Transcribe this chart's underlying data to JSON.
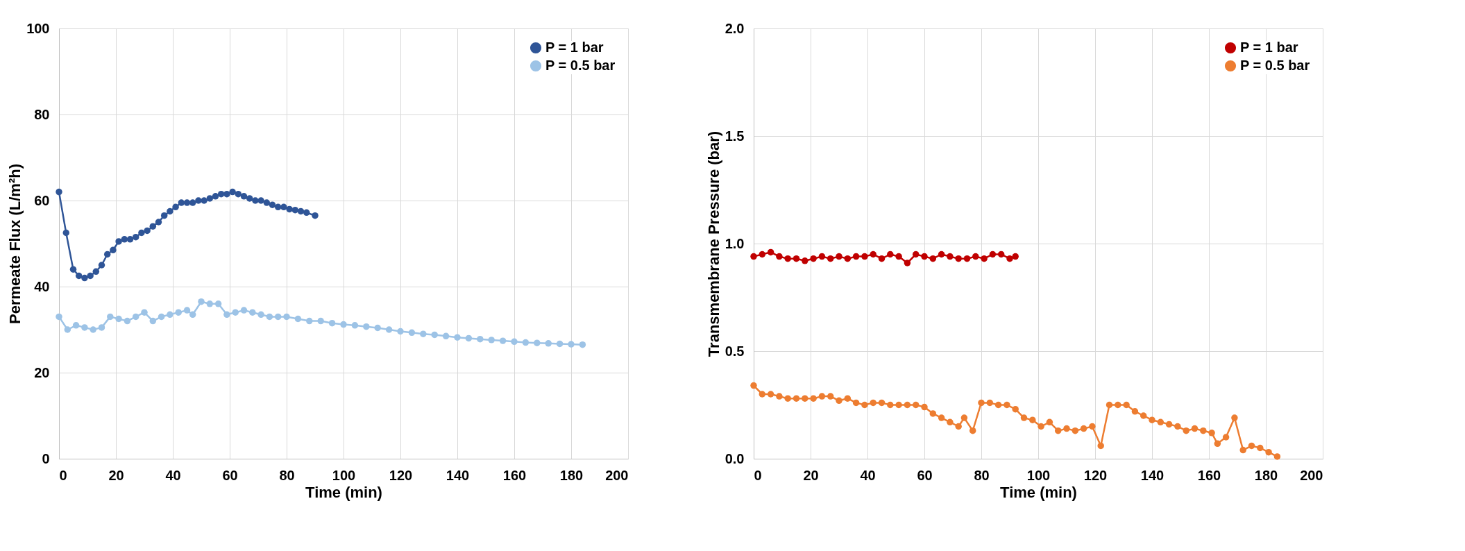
{
  "chart_data": [
    {
      "type": "line",
      "xlabel": "Time (min)",
      "ylabel": "Permeate Flux (L/m²h)",
      "xlim": [
        0,
        200
      ],
      "xticks": [
        0,
        20,
        40,
        60,
        80,
        100,
        120,
        140,
        160,
        180,
        200
      ],
      "ylim": [
        0,
        100
      ],
      "yticks": [
        0,
        20,
        40,
        60,
        80,
        100
      ],
      "grid": true,
      "legend": "top right",
      "marker": "circle",
      "line_style": "solid",
      "series": [
        {
          "name": "P = 1 bar",
          "color": "#2f5597",
          "x": [
            0,
            2.5,
            5,
            7,
            9,
            11,
            13,
            15,
            17,
            19,
            21,
            23,
            25,
            27,
            29,
            31,
            33,
            35,
            37,
            39,
            41,
            43,
            45,
            47,
            49,
            51,
            53,
            55,
            57,
            59,
            61,
            63,
            65,
            67,
            69,
            71,
            73,
            75,
            77,
            79,
            81,
            83,
            85,
            87,
            90
          ],
          "values": [
            62,
            52.5,
            44,
            42.5,
            42,
            42.5,
            43.5,
            45,
            47.5,
            48.5,
            50.5,
            51,
            51,
            51.5,
            52.5,
            53,
            54,
            55,
            56.5,
            57.5,
            58.5,
            59.5,
            59.5,
            59.5,
            60,
            60,
            60.5,
            61,
            61.5,
            61.5,
            62,
            61.5,
            61,
            60.5,
            60,
            60,
            59.5,
            59,
            58.5,
            58.5,
            58,
            57.8,
            57.5,
            57.2,
            56.5
          ]
        },
        {
          "name": "P = 0.5 bar",
          "color": "#9dc3e6",
          "x": [
            0,
            3,
            6,
            9,
            12,
            15,
            18,
            21,
            24,
            27,
            30,
            33,
            36,
            39,
            42,
            45,
            47,
            50,
            53,
            56,
            59,
            62,
            65,
            68,
            71,
            74,
            77,
            80,
            84,
            88,
            92,
            96,
            100,
            104,
            108,
            112,
            116,
            120,
            124,
            128,
            132,
            136,
            140,
            144,
            148,
            152,
            156,
            160,
            164,
            168,
            172,
            176,
            180,
            184
          ],
          "values": [
            33,
            30,
            31,
            30.5,
            30,
            30.5,
            33,
            32.5,
            32,
            33,
            34,
            32,
            33,
            33.5,
            34,
            34.5,
            33.5,
            36.5,
            36,
            36,
            33.5,
            34,
            34.5,
            34,
            33.5,
            33,
            33,
            33,
            32.5,
            32,
            32,
            31.5,
            31.2,
            31,
            30.7,
            30.4,
            30,
            29.6,
            29.3,
            29,
            28.8,
            28.5,
            28.2,
            28,
            27.8,
            27.6,
            27.4,
            27.2,
            27,
            26.9,
            26.8,
            26.7,
            26.6,
            26.5
          ]
        }
      ]
    },
    {
      "type": "line",
      "xlabel": "Time (min)",
      "ylabel": "Transmembrane Pressure (bar)",
      "xlim": [
        0,
        200
      ],
      "xticks": [
        0,
        20,
        40,
        60,
        80,
        100,
        120,
        140,
        160,
        180,
        200
      ],
      "ylim": [
        0,
        2
      ],
      "yticks": [
        {
          "value": 0,
          "label": "0.0"
        },
        {
          "value": 0.5,
          "label": "0.5"
        },
        {
          "value": 1,
          "label": "1.0"
        },
        {
          "value": 1.5,
          "label": "1.5"
        },
        {
          "value": 2,
          "label": "2.0"
        }
      ],
      "grid": true,
      "legend": "top right",
      "marker": "circle",
      "line_style": "solid",
      "series": [
        {
          "name": "P = 1 bar",
          "color": "#c00000",
          "x": [
            0,
            3,
            6,
            9,
            12,
            15,
            18,
            21,
            24,
            27,
            30,
            33,
            36,
            39,
            42,
            45,
            48,
            51,
            54,
            57,
            60,
            63,
            66,
            69,
            72,
            75,
            78,
            81,
            84,
            87,
            90,
            92
          ],
          "values": [
            0.94,
            0.95,
            0.96,
            0.94,
            0.93,
            0.93,
            0.92,
            0.93,
            0.94,
            0.93,
            0.94,
            0.93,
            0.94,
            0.94,
            0.95,
            0.93,
            0.95,
            0.94,
            0.91,
            0.95,
            0.94,
            0.93,
            0.95,
            0.94,
            0.93,
            0.93,
            0.94,
            0.93,
            0.95,
            0.95,
            0.93,
            0.94
          ]
        },
        {
          "name": "P = 0.5 bar",
          "color": "#ed7d31",
          "x": [
            0,
            3,
            6,
            9,
            12,
            15,
            18,
            21,
            24,
            27,
            30,
            33,
            36,
            39,
            42,
            45,
            48,
            51,
            54,
            57,
            60,
            63,
            66,
            69,
            72,
            74,
            77,
            80,
            83,
            86,
            89,
            92,
            95,
            98,
            101,
            104,
            107,
            110,
            113,
            116,
            119,
            122,
            125,
            128,
            131,
            134,
            137,
            140,
            143,
            146,
            149,
            152,
            155,
            158,
            161,
            163,
            166,
            169,
            172,
            175,
            178,
            181,
            184
          ],
          "values": [
            0.34,
            0.3,
            0.3,
            0.29,
            0.28,
            0.28,
            0.28,
            0.28,
            0.29,
            0.29,
            0.27,
            0.28,
            0.26,
            0.25,
            0.26,
            0.26,
            0.25,
            0.25,
            0.25,
            0.25,
            0.24,
            0.21,
            0.19,
            0.17,
            0.15,
            0.19,
            0.13,
            0.26,
            0.26,
            0.25,
            0.25,
            0.23,
            0.19,
            0.18,
            0.15,
            0.17,
            0.13,
            0.14,
            0.13,
            0.14,
            0.15,
            0.06,
            0.25,
            0.25,
            0.25,
            0.22,
            0.2,
            0.18,
            0.17,
            0.16,
            0.15,
            0.13,
            0.14,
            0.13,
            0.12,
            0.07,
            0.1,
            0.19,
            0.04,
            0.06,
            0.05,
            0.03,
            0.01
          ]
        }
      ]
    }
  ]
}
